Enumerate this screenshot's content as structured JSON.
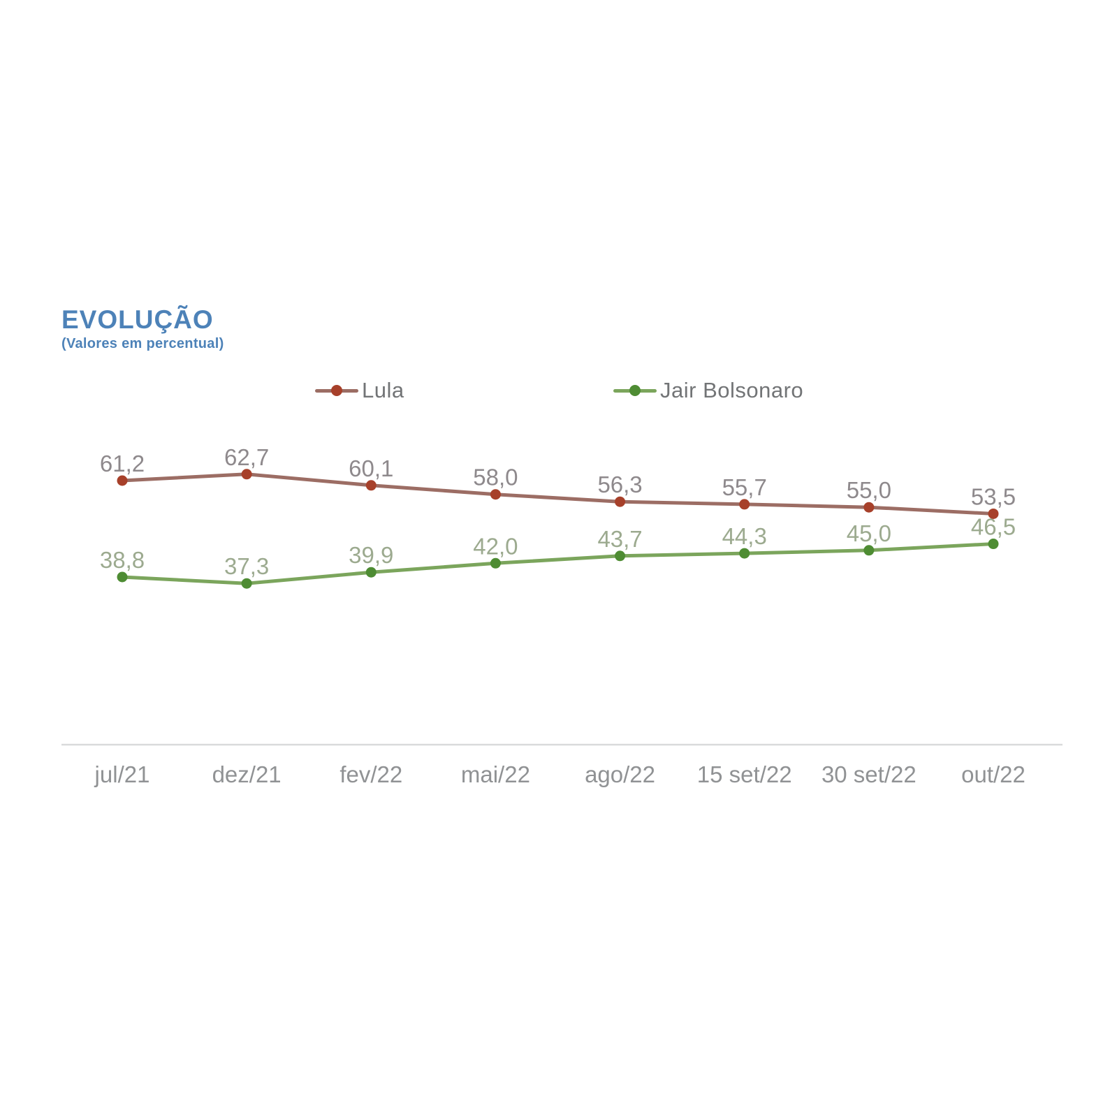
{
  "header": {
    "title": "EVOLUÇÃO",
    "subtitle": "(Valores em percentual)",
    "accent_color": "#4d82b8"
  },
  "chart_data": {
    "type": "line",
    "title": "EVOLUÇÃO",
    "subtitle": "(Valores em percentual)",
    "categories": [
      "jul/21",
      "dez/21",
      "fev/22",
      "mai/22",
      "ago/22",
      "15 set/22",
      "30 set/22",
      "out/22"
    ],
    "series": [
      {
        "name": "Lula",
        "values": [
          61.2,
          62.7,
          60.1,
          58.0,
          56.3,
          55.7,
          55.0,
          53.5
        ],
        "value_labels": [
          "61,2",
          "62,7",
          "60,1",
          "58,0",
          "56,3",
          "55,7",
          "55,0",
          "53,5"
        ],
        "line_color": "#9c6d64",
        "marker_color": "#a7402a",
        "label_color": "#8e898c"
      },
      {
        "name": "Jair Bolsonaro",
        "values": [
          38.8,
          37.3,
          39.9,
          42.0,
          43.7,
          44.3,
          45.0,
          46.5
        ],
        "value_labels": [
          "38,8",
          "37,3",
          "39,9",
          "42,0",
          "43,7",
          "44,3",
          "45,0",
          "46,5"
        ],
        "line_color": "#7ba55c",
        "marker_color": "#4e8c33",
        "label_color": "#9caa8f"
      }
    ],
    "axis": {
      "tick_label_color": "#909294",
      "axis_line_color": "#d9dadb"
    },
    "legend_position": "top",
    "grid": false,
    "ylim": [
      30,
      70
    ]
  }
}
